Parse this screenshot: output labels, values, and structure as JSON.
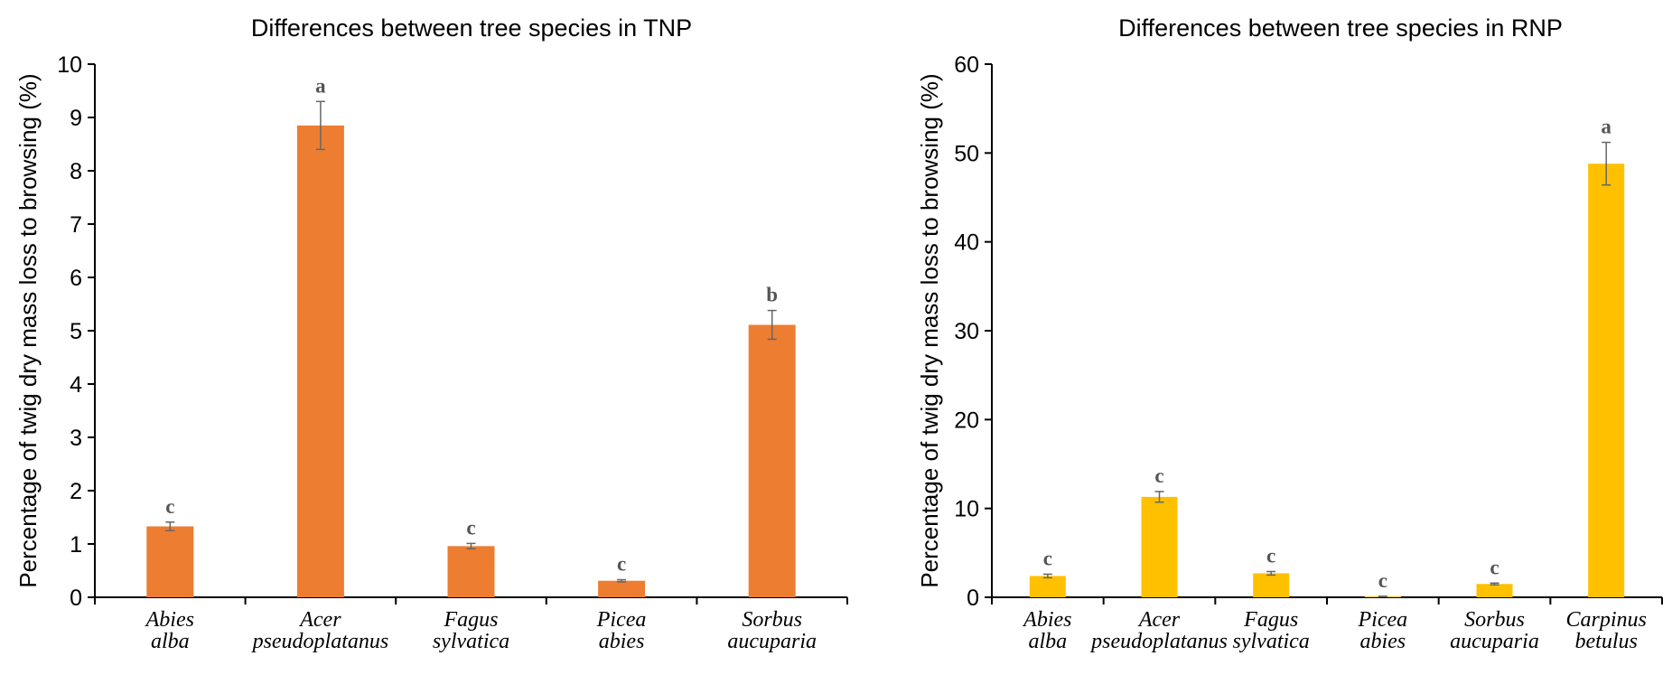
{
  "chart_data": [
    {
      "type": "bar",
      "title": "Differences between tree species in TNP",
      "ylabel": "Percentage of twig dry mass loss to browsing (%)",
      "xlabel": "",
      "ylim": [
        0,
        10
      ],
      "yticks": [
        0,
        1,
        2,
        3,
        4,
        5,
        6,
        7,
        8,
        9,
        10
      ],
      "color": "#ED7D31",
      "grid": false,
      "categories": [
        [
          "Abies",
          "alba"
        ],
        [
          "Acer",
          "pseudoplatanus"
        ],
        [
          "Fagus",
          "sylvatica"
        ],
        [
          "Picea",
          "abies"
        ],
        [
          "Sorbus",
          "aucuparia"
        ]
      ],
      "values": [
        1.33,
        8.85,
        0.96,
        0.31,
        5.11
      ],
      "errors": [
        0.08,
        0.45,
        0.05,
        0.02,
        0.27
      ],
      "significance": [
        "c",
        "a",
        "c",
        "c",
        "b"
      ]
    },
    {
      "type": "bar",
      "title": "Differences between tree species in RNP",
      "ylabel": "Percentage of twig dry mass loss to browsing (%)",
      "xlabel": "",
      "ylim": [
        0,
        60
      ],
      "yticks": [
        0,
        10,
        20,
        30,
        40,
        50,
        60
      ],
      "color": "#FFC000",
      "grid": false,
      "categories": [
        [
          "Abies",
          "alba"
        ],
        [
          "Acer",
          "pseudoplatanus"
        ],
        [
          "Fagus",
          "sylvatica"
        ],
        [
          "Picea",
          "abies"
        ],
        [
          "Sorbus",
          "aucuparia"
        ],
        [
          "Carpinus",
          "betulus"
        ]
      ],
      "values": [
        2.4,
        11.3,
        2.7,
        0.1,
        1.5,
        48.8
      ],
      "errors": [
        0.2,
        0.6,
        0.2,
        0.02,
        0.1,
        2.4
      ],
      "significance": [
        "c",
        "c",
        "c",
        "c",
        "c",
        "a"
      ]
    }
  ]
}
